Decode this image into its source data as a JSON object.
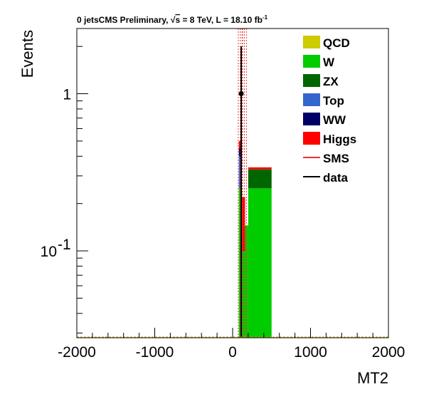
{
  "chart_data": {
    "type": "bar",
    "title_prefix": "0 jetsCMS Preliminary, ",
    "title_sqrt": "√",
    "title_s": "s",
    "title_energy": " = 8 TeV, L = 18.10 fb",
    "title_exp": "-1",
    "xlabel": "MT2",
    "ylabel": "Events",
    "xlim": [
      -2000,
      2000
    ],
    "ylim": [
      0.028,
      2.6
    ],
    "ylog": true,
    "xticks": [
      -2000,
      -1000,
      0,
      1000,
      2000
    ],
    "xtick_labels": [
      "-2000",
      "-1000",
      "0",
      "1000",
      "2000"
    ],
    "yticks": [
      {
        "value": 1,
        "base": "1",
        "exp": ""
      },
      {
        "value": 0.1,
        "base": "10",
        "exp": "-1"
      }
    ],
    "legend_position": "top-right",
    "colors": {
      "QCD": "#cccc00",
      "W": "#00cc00",
      "ZX": "#006600",
      "Top": "#3366cc",
      "WW": "#000066",
      "Higgs": "#ff0000",
      "SMS": "#ee3333",
      "data": "#000000"
    },
    "legend": [
      {
        "name": "QCD",
        "style": "box"
      },
      {
        "name": "W",
        "style": "box"
      },
      {
        "name": "ZX",
        "style": "box"
      },
      {
        "name": "Top",
        "style": "box"
      },
      {
        "name": "WW",
        "style": "box"
      },
      {
        "name": "Higgs",
        "style": "box"
      },
      {
        "name": "SMS",
        "style": "line"
      },
      {
        "name": "data",
        "style": "line"
      }
    ],
    "stacked_bars": [
      {
        "x0": 80,
        "x1": 120,
        "segments": [
          {
            "name": "W",
            "value": 0.25
          },
          {
            "name": "Top",
            "value": 0.15
          },
          {
            "name": "WW",
            "value": 0.05
          },
          {
            "name": "Higgs",
            "value": 0.05
          }
        ]
      },
      {
        "x0": 120,
        "x1": 160,
        "segments": [
          {
            "name": "W",
            "value": 0.1
          },
          {
            "name": "Higgs",
            "value": 0.12
          }
        ]
      },
      {
        "x0": 160,
        "x1": 200,
        "segments": [
          {
            "name": "W",
            "value": 0.145
          }
        ]
      },
      {
        "x0": 200,
        "x1": 500,
        "segments": [
          {
            "name": "W",
            "value": 0.25
          },
          {
            "name": "ZX",
            "value": 0.08
          },
          {
            "name": "Higgs",
            "value": 0.01
          }
        ]
      }
    ],
    "sms_lines": [
      {
        "x": 100
      },
      {
        "x": 150
      }
    ],
    "data_points": [
      {
        "x": 110,
        "y": 1.0,
        "err_low": 0.028,
        "err_high": 2.0
      }
    ]
  }
}
